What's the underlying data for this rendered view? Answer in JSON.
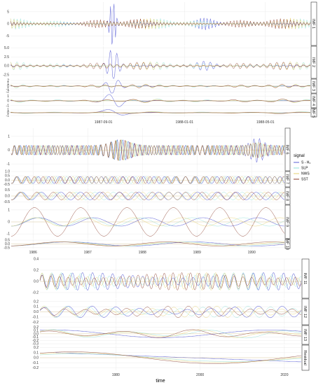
{
  "colors": {
    "S - H0": "#5a5fd6",
    "SLP": "#8fe0d8",
    "NWS": "#e5d070",
    "SST": "#8a3b2a"
  },
  "legend": {
    "title": "signal",
    "entries": [
      {
        "label": "S - H₀",
        "key": "S - H0"
      },
      {
        "label": "SLP",
        "key": "SLP"
      },
      {
        "label": "NWS",
        "key": "NWS"
      },
      {
        "label": "SST",
        "key": "SST"
      }
    ]
  },
  "xlabel": "time",
  "chart_data": [
    {
      "type": "line",
      "group": "IMF 1-5",
      "x_ticks": [
        "1987-09-01",
        "1988-01-01",
        "1988-05-01"
      ],
      "xlim": [
        0,
        1
      ],
      "panels": [
        {
          "name": "IMF 1",
          "yticks": [
            "5",
            "0",
            "-5"
          ],
          "ylim": [
            -9,
            9
          ]
        },
        {
          "name": "IMF 2",
          "yticks": [
            "5.0",
            "2.5",
            "0.0",
            "-2.5"
          ],
          "ylim": [
            -3.5,
            5.5
          ]
        },
        {
          "name": "IMF 3",
          "yticks": [
            "2",
            "1",
            "0",
            "-1",
            "-2"
          ],
          "ylim": [
            -2.5,
            2.5
          ]
        },
        {
          "name": "IMF 4",
          "yticks": [
            "1",
            "0",
            "-1"
          ],
          "ylim": [
            -1.5,
            1.5
          ]
        },
        {
          "name": "IMF 5",
          "yticks": [
            "1",
            "0",
            "-1"
          ],
          "ylim": [
            -1.5,
            1.5
          ]
        }
      ]
    },
    {
      "type": "line",
      "group": "IMF 6-10",
      "x_ticks": [
        "1986",
        "1987",
        "1988",
        "1989",
        "1990"
      ],
      "xlim": [
        1985.6,
        1990.6
      ],
      "panels": [
        {
          "name": "IMF 6",
          "yticks": [
            "1",
            "0",
            "-1"
          ],
          "ylim": [
            -1.5,
            1.6
          ]
        },
        {
          "name": "IMF 7",
          "yticks": [
            "1.0",
            "0.5",
            "0.0",
            "-0.5"
          ],
          "ylim": [
            -0.8,
            1.0
          ]
        },
        {
          "name": "IMF 8",
          "yticks": [
            "0.5",
            "0.0",
            "-0.5"
          ],
          "ylim": [
            -0.7,
            0.7
          ]
        },
        {
          "name": "IMF 9",
          "yticks": [
            "1",
            "0",
            "-1"
          ],
          "ylim": [
            -1.4,
            1.4
          ]
        },
        {
          "name": "IMF 10",
          "yticks": [
            "0.5",
            "0.0",
            "-0.5"
          ],
          "ylim": [
            -0.6,
            0.6
          ]
        }
      ]
    },
    {
      "type": "line",
      "group": "IMF 11-13 and Residual",
      "x_ticks": [
        "1980",
        "2000",
        "2020"
      ],
      "xlim": [
        1962,
        2024
      ],
      "panels": [
        {
          "name": "IMF 11",
          "yticks": [
            "0.4",
            "0.2",
            "0.0",
            "-0.2"
          ],
          "ylim": [
            -0.3,
            0.4
          ]
        },
        {
          "name": "IMF 12",
          "yticks": [
            "0.2",
            "0.1",
            "0.0",
            "-0.1",
            "-0.2"
          ],
          "ylim": [
            -0.25,
            0.25
          ]
        },
        {
          "name": "IMF 13",
          "yticks": [
            "0.2",
            "0.1",
            "0.0",
            "-0.1",
            "-0.2",
            "-0.3"
          ],
          "ylim": [
            -0.32,
            0.25
          ]
        },
        {
          "name": "Residual",
          "yticks": [
            "0.2",
            "0.1",
            "0.0",
            "-0.1",
            "-0.2"
          ],
          "ylim": [
            -0.25,
            0.25
          ]
        }
      ]
    }
  ]
}
